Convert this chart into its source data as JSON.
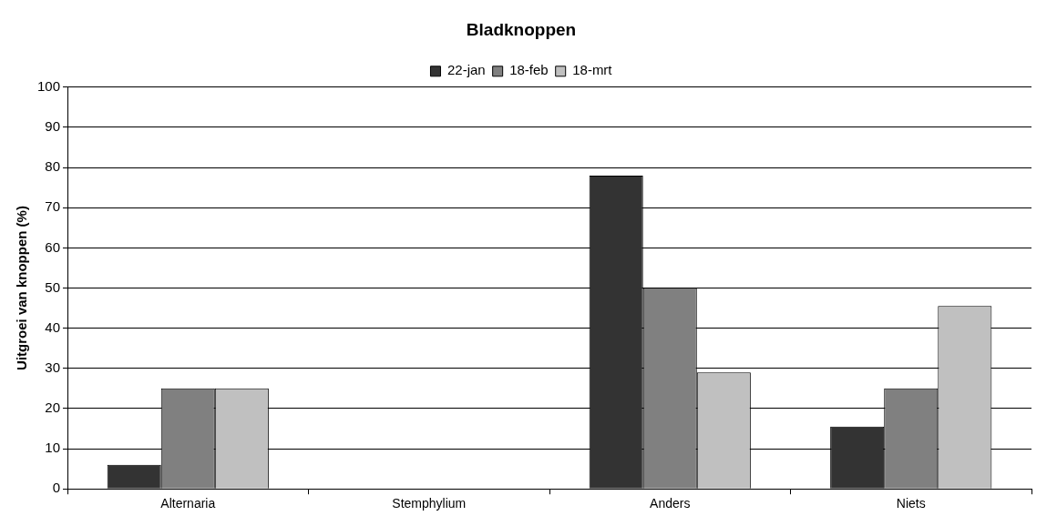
{
  "chart_data": {
    "type": "bar",
    "title": "Bladknoppen",
    "ylabel": "Uitgroei van knoppen (%)",
    "categories": [
      "Alternaria",
      "Stemphylium",
      "Anders",
      "Niets"
    ],
    "series": [
      {
        "name": "22-jan",
        "color": "#333333",
        "values": [
          6,
          0,
          78,
          15.5
        ]
      },
      {
        "name": "18-feb",
        "color": "#808080",
        "values": [
          25,
          0,
          50,
          25
        ]
      },
      {
        "name": "18-mrt",
        "color": "#c0c0c0",
        "values": [
          25,
          0,
          29,
          45.5
        ]
      }
    ],
    "ylim": [
      0,
      100
    ],
    "yticks": [
      0,
      10,
      20,
      30,
      40,
      50,
      60,
      70,
      80,
      90,
      100
    ],
    "grid": "y",
    "legend": "top"
  }
}
